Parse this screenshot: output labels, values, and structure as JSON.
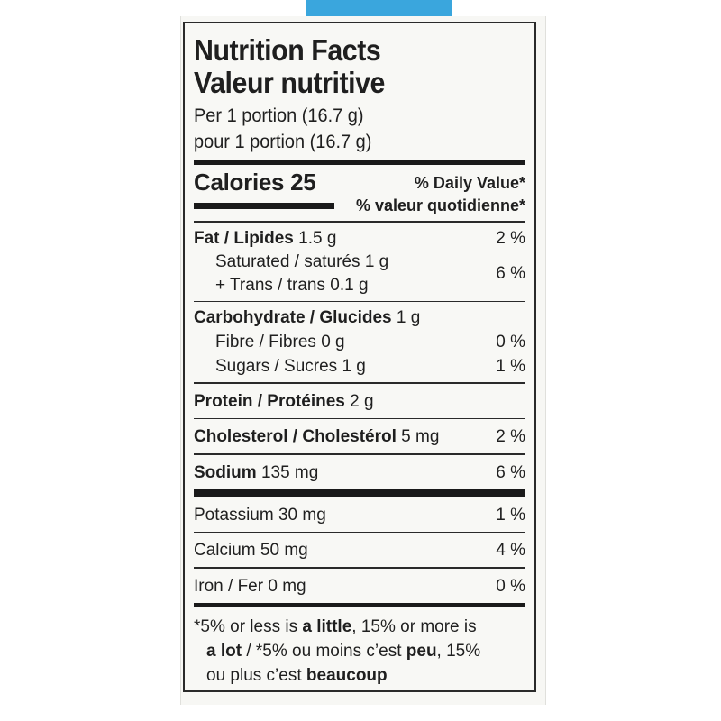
{
  "colors": {
    "brand_blue": "#3aa6dd",
    "ink": "#1f1f1f"
  },
  "label": {
    "title_en": "Nutrition Facts",
    "title_fr": "Valeur nutritive",
    "serving_en": "Per 1 portion (16.7 g)",
    "serving_fr": "pour 1 portion (16.7 g)",
    "calories": "Calories 25",
    "dv_en": "% Daily Value*",
    "dv_fr": "% valeur quotidienne*",
    "fat": {
      "name": "Fat / Lipides",
      "amount": " 1.5 g",
      "pct": "2 %"
    },
    "saturated": {
      "text": "Saturated / saturés 1 g"
    },
    "trans": {
      "text": "+ Trans / trans 0.1 g"
    },
    "sat_trans_pct": "6 %",
    "carb": {
      "name": "Carbohydrate / Glucides",
      "amount": " 1 g"
    },
    "fibre": {
      "text": "Fibre / Fibres 0 g",
      "pct": "0 %"
    },
    "sugars": {
      "text": "Sugars / Sucres 1 g",
      "pct": "1 %"
    },
    "protein": {
      "name": "Protein / Protéines",
      "amount": " 2 g"
    },
    "cholesterol": {
      "name": "Cholesterol / Cholestérol",
      "amount": " 5 mg",
      "pct": "2 %"
    },
    "sodium": {
      "name": "Sodium",
      "amount": " 135 mg",
      "pct": "6 %"
    },
    "potassium": {
      "text": "Potassium 30 mg",
      "pct": "1 %"
    },
    "calcium": {
      "text": "Calcium 50 mg",
      "pct": "4 %"
    },
    "iron": {
      "text": "Iron / Fer 0 mg",
      "pct": "0 %"
    },
    "footnote": {
      "p1": "*5% or less is ",
      "b1": "a little",
      "p2": ", 15% or more is",
      "b2": "a lot",
      "p3": " / *5% ou moins c’est ",
      "b3": "peu",
      "p4": ", 15%",
      "p5": "ou plus c’est ",
      "b4": "beaucoup"
    }
  }
}
